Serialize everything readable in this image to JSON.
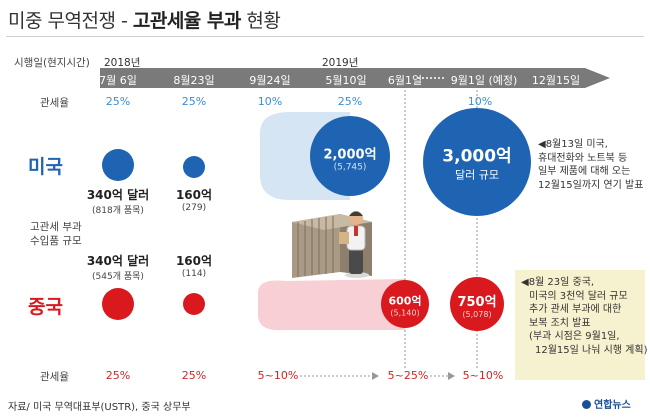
{
  "title": {
    "light": "미중 무역전쟁 - ",
    "bold": "고관세율 부과",
    "rest": " 현황"
  },
  "axis_label": "시행일(현지시간)",
  "years": {
    "y2018": "2018년",
    "y2019": "2019년"
  },
  "dates": [
    "7월 6일",
    "8월23일",
    "9월24일",
    "5월10일",
    "6월1일",
    "9월1일 (예정)",
    "12월15일"
  ],
  "labels": {
    "tariff_top": "관세율",
    "tariff_bottom": "관세율",
    "size": [
      "고관세 부과",
      "수입품 규모"
    ],
    "us": "미국",
    "cn": "중국"
  },
  "us": {
    "rates": [
      "25%",
      "25%",
      "10%",
      "25%",
      "10%"
    ],
    "amounts": [
      {
        "main": "340억 달러",
        "sub": "(818개 품목)"
      },
      {
        "main": "160억",
        "sub": "(279)"
      }
    ],
    "bubble_2000": {
      "main": "2,000억",
      "sub": "(5,745)"
    },
    "bubble_3000": {
      "main": "3,000억",
      "sub": "달러 규모"
    },
    "note": [
      "◀8월13일 미국,",
      "휴대전화와 노트북 등",
      "일부 제품에 대해 오는",
      "12월15일까지 연기 발표"
    ]
  },
  "cn": {
    "rates": [
      "25%",
      "25%",
      "5~10%",
      "5~25%",
      "5~10%"
    ],
    "amounts": [
      {
        "main": "340억 달러",
        "sub": "(545개 품목)"
      },
      {
        "main": "160억",
        "sub": "(114)"
      }
    ],
    "bubble_600": {
      "main": "600억",
      "sub": "(5,140)"
    },
    "bubble_750": {
      "main": "750억",
      "sub": "(5,078)"
    },
    "note": [
      "◀8월 23일 중국,",
      "미국의 3천억 달러 규모",
      "추가 관세 부과에 대한",
      "보복 조치 발표",
      "(부과 시점은 9월1일,",
      "12월15일 나눠 시행 계획)"
    ]
  },
  "footer": "자료/ 미국 무역대표부(USTR), 중국 상무부",
  "logo": "연합뉴스",
  "colors": {
    "us_blue": "#1f63b3",
    "cn_red": "#d9191d",
    "rate_blue": "#3b8fd4",
    "arrow_gray": "#7a7a7a",
    "note_bg": "#f6f2cf"
  }
}
